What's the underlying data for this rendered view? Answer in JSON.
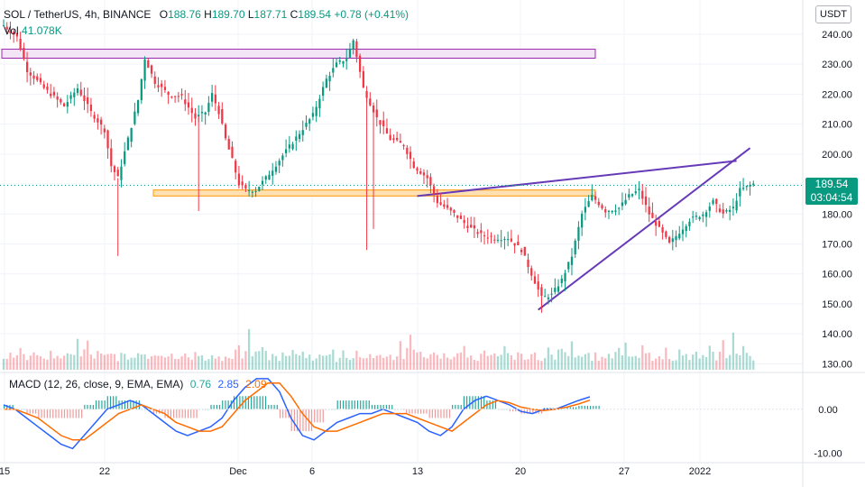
{
  "header": {
    "symbol": "SOL / TetherUS, 4h, BINANCE",
    "open_label": "O",
    "open": "188.76",
    "high_label": "H",
    "high": "189.70",
    "low_label": "L",
    "low": "187.71",
    "close_label": "C",
    "close": "189.54",
    "change": "+0.78 (+0.41%)",
    "vol_label": "Vol",
    "vol": "41.078K"
  },
  "currency_button": "USDT",
  "last_price": {
    "value": "189.54",
    "countdown": "03:04:54"
  },
  "macd_legend": {
    "label": "MACD (12, 26, close, 9, EMA, EMA)",
    "hist": "0.76",
    "macd": "2.85",
    "signal": "2.09"
  },
  "colors": {
    "up": "#089981",
    "down": "#f23645",
    "macd_line": "#2962ff",
    "signal_line": "#ff6d00",
    "trendline": "#673ab7",
    "zone_fill": "#ffe0b2",
    "zone_border": "#ff9800",
    "resistance_fill": "#f3e5f5",
    "resistance_border": "#9c27b0"
  },
  "chart_data": [
    {
      "type": "candlestick",
      "y_unit": "USDT",
      "ylim": [
        128,
        246
      ],
      "y_ticks": [
        "240.00",
        "230.00",
        "220.00",
        "210.00",
        "200.00",
        "190.00",
        "180.00",
        "170.00",
        "160.00",
        "150.00",
        "140.00",
        "130.00"
      ],
      "x_ticks": [
        "15",
        "22",
        "Dec",
        "6",
        "13",
        "20",
        "27",
        "2022"
      ],
      "approx_close_path": [
        [
          0,
          243
        ],
        [
          4,
          239
        ],
        [
          7,
          228
        ],
        [
          12,
          222
        ],
        [
          18,
          216
        ],
        [
          22,
          222
        ],
        [
          26,
          214
        ],
        [
          30,
          208
        ],
        [
          32,
          196
        ],
        [
          34,
          192
        ],
        [
          37,
          205
        ],
        [
          40,
          218
        ],
        [
          42,
          232
        ],
        [
          45,
          224
        ],
        [
          49,
          220
        ],
        [
          53,
          219
        ],
        [
          57,
          212
        ],
        [
          60,
          214
        ],
        [
          62,
          220
        ],
        [
          64,
          214
        ],
        [
          66,
          205
        ],
        [
          68,
          198
        ],
        [
          70,
          190
        ],
        [
          72,
          188
        ],
        [
          75,
          188
        ],
        [
          78,
          192
        ],
        [
          82,
          198
        ],
        [
          86,
          204
        ],
        [
          90,
          210
        ],
        [
          92,
          213
        ],
        [
          96,
          225
        ],
        [
          99,
          230
        ],
        [
          102,
          232
        ],
        [
          104,
          238
        ],
        [
          107,
          222
        ],
        [
          111,
          212
        ],
        [
          115,
          205
        ],
        [
          119,
          203
        ],
        [
          122,
          196
        ],
        [
          126,
          192
        ],
        [
          129,
          184
        ],
        [
          134,
          180
        ],
        [
          138,
          176
        ],
        [
          142,
          173
        ],
        [
          146,
          172
        ],
        [
          150,
          172
        ],
        [
          154,
          168
        ],
        [
          157,
          160
        ],
        [
          160,
          152
        ],
        [
          163,
          153
        ],
        [
          166,
          158
        ],
        [
          169,
          166
        ],
        [
          172,
          180
        ],
        [
          175,
          186
        ],
        [
          179,
          181
        ],
        [
          183,
          182
        ],
        [
          186,
          186
        ],
        [
          189,
          188
        ],
        [
          192,
          180
        ],
        [
          195,
          175
        ],
        [
          198,
          170
        ],
        [
          201,
          174
        ],
        [
          204,
          178
        ],
        [
          208,
          180
        ],
        [
          211,
          184
        ],
        [
          214,
          180
        ],
        [
          217,
          182
        ],
        [
          219,
          188
        ],
        [
          221,
          189
        ],
        [
          223,
          190
        ]
      ],
      "annotations": [
        {
          "kind": "zone",
          "ymin": 232,
          "ymax": 235
        },
        {
          "kind": "zone",
          "ymin": 186,
          "ymax": 188
        },
        {
          "kind": "trendline",
          "points": [
            [
              123,
              186
            ],
            [
              204,
              196
            ]
          ]
        },
        {
          "kind": "trendline",
          "points": [
            [
              159,
              148
            ],
            [
              208,
              190
            ]
          ]
        }
      ]
    },
    {
      "type": "bar",
      "name": "Vol",
      "values_relative": [
        0.35,
        0.3,
        0.4,
        0.25,
        0.3,
        0.5,
        0.35,
        0.3,
        0.28,
        0.45,
        0.3,
        0.35,
        0.25,
        0.3,
        0.4,
        0.32,
        0.3,
        0.26,
        0.5,
        0.35,
        0.3,
        0.4,
        0.7,
        0.35,
        0.5,
        1.0,
        0.4,
        0.35,
        0.5,
        0.45,
        0.38,
        0.3,
        0.35,
        0.3,
        0.28,
        0.35,
        0.3,
        0.3,
        0.4,
        0.45,
        0.35,
        0.6,
        0.4,
        0.3,
        0.25,
        0.3,
        0.5,
        0.4
      ]
    },
    {
      "type": "line",
      "ylim": [
        -12,
        8
      ],
      "y_ticks": [
        "0.00",
        "-10.00"
      ],
      "series": [
        {
          "name": "MACD",
          "values": [
            1,
            0,
            -2,
            -4,
            -6,
            -8,
            -9,
            -6,
            -3,
            0,
            1,
            2,
            1,
            -1,
            -3,
            -5,
            -6,
            -5,
            -4,
            -2,
            2,
            5,
            7,
            7,
            4,
            -2,
            -6,
            -7,
            -5,
            -3,
            -2,
            -1,
            -1,
            0,
            -1,
            -2,
            -3,
            -5,
            -6,
            -4,
            0,
            2,
            3,
            2,
            1,
            -0.5,
            -1,
            0,
            0,
            1,
            2,
            2.85
          ]
        },
        {
          "name": "Signal",
          "values": [
            0,
            0,
            -1,
            -2,
            -4,
            -6,
            -7,
            -7,
            -5,
            -3,
            -1,
            0,
            1,
            0,
            -1,
            -3,
            -4,
            -5,
            -5,
            -4,
            -1,
            2,
            4,
            6,
            6,
            3,
            -1,
            -4,
            -5,
            -5,
            -4,
            -3,
            -2,
            -1,
            -1,
            -1,
            -2,
            -3,
            -4,
            -5,
            -3,
            -1,
            1,
            2,
            1.5,
            0.5,
            0,
            -0.3,
            0,
            0.5,
            1.2,
            2.09
          ]
        },
        {
          "name": "Histogram",
          "values": [
            1,
            0,
            -1,
            -2,
            -2,
            -2,
            -2,
            1,
            2,
            3,
            2,
            2,
            0,
            -1,
            -2,
            -2,
            -2,
            0,
            1,
            2,
            3,
            3,
            3,
            1,
            -2,
            -5,
            -5,
            -3,
            0,
            2,
            2,
            2,
            1,
            1,
            0,
            -1,
            -1,
            -2,
            -2,
            1,
            3,
            3,
            2,
            0,
            -0.5,
            -1,
            -1,
            0.3,
            0,
            0.5,
            0.8,
            0.76
          ]
        }
      ]
    }
  ]
}
